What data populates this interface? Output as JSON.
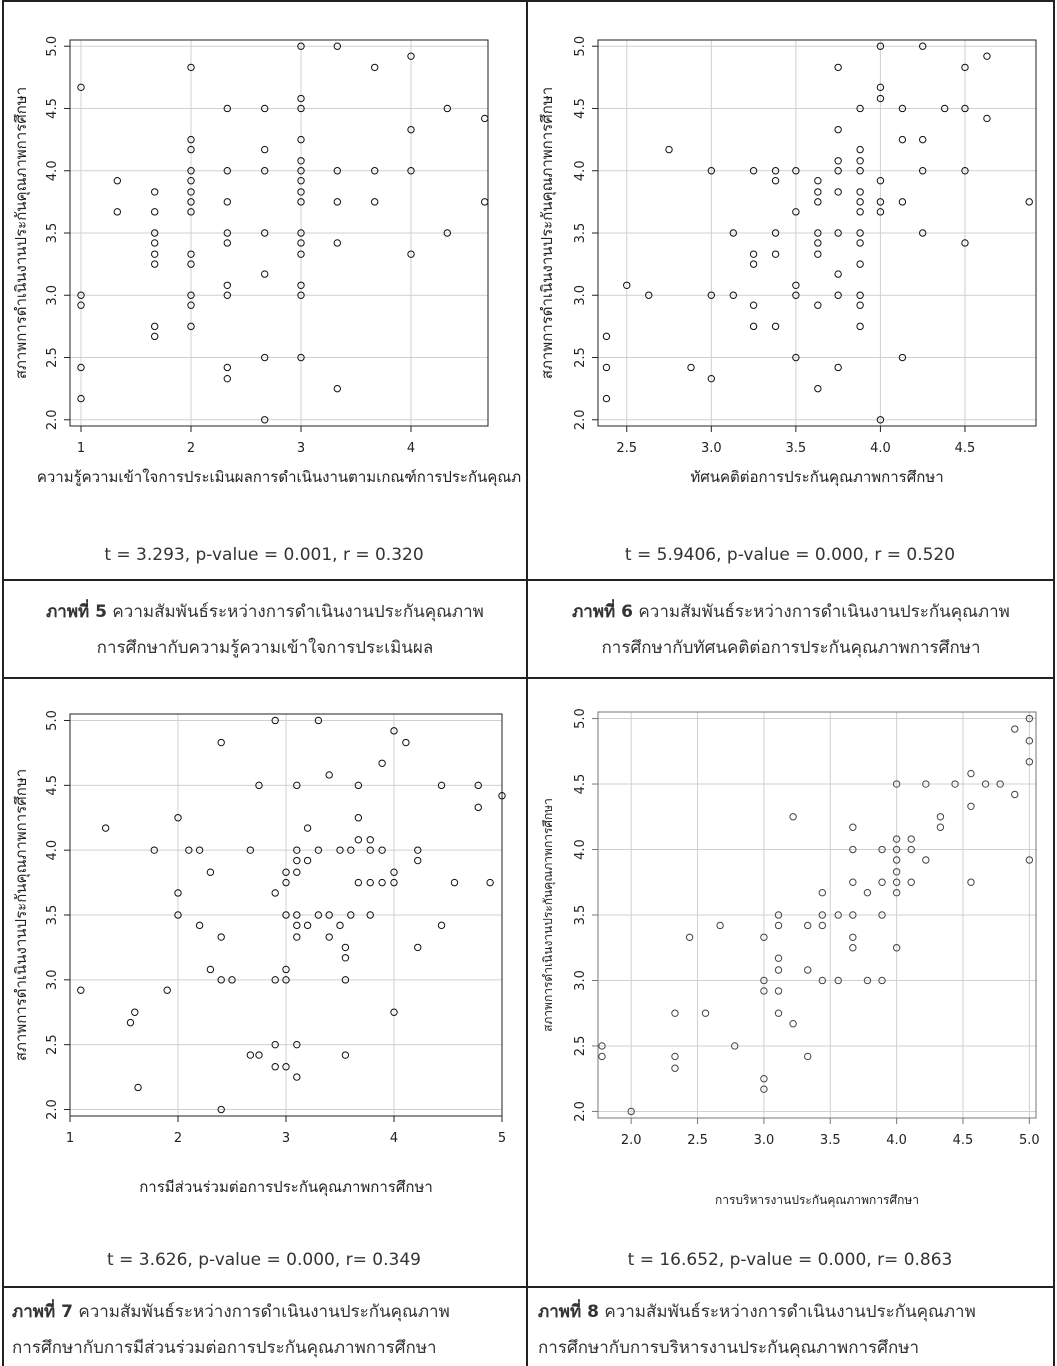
{
  "panels": [
    {
      "stat": "t = 3.293, p-value = 0.001, r = 0.320",
      "caption_label": "ภาพที่ 5",
      "caption_line1": "ความสัมพันธ์ระหว่างการดำเนินงานประกันคุณภาพ",
      "caption_line2": "การศึกษากับความรู้ความเข้าใจการประเมินผล"
    },
    {
      "stat": "t = 5.9406, p-value = 0.000, r = 0.520",
      "caption_label": "ภาพที่ 6",
      "caption_line1": "ความสัมพันธ์ระหว่างการดำเนินงานประกันคุณภาพ",
      "caption_line2": "การศึกษากับทัศนคติต่อการประกันคุณภาพการศึกษา"
    },
    {
      "stat": "t = 3.626, p-value = 0.000, r= 0.349",
      "caption_label": "ภาพที่ 7",
      "caption_line1": "ความสัมพันธ์ระหว่างการดำเนินงานประกันคุณภาพ",
      "caption_line2": "การศึกษากับการมีส่วนร่วมต่อการประกันคุณภาพการศึกษา"
    },
    {
      "stat": "t = 16.652, p-value = 0.000, r= 0.863",
      "caption_label": "ภาพที่ 8",
      "caption_line1": "ความสัมพันธ์ระหว่างการดำเนินงานประกันคุณภาพ",
      "caption_line2": "การศึกษากับการบริหารงานประกันคุณภาพการศึกษา"
    }
  ],
  "chart_data": [
    {
      "type": "scatter",
      "xlabel": "ความรู้ความเข้าใจการประเมินผลการดำเนินงานตามเกณฑ์การประกันคุณภ",
      "ylabel": "สภาพการดำเนินงานประกันคุณภาพการศึกษา",
      "xlim": [
        0.9,
        4.7
      ],
      "ylim": [
        1.95,
        5.05
      ],
      "xticks": [
        1,
        2,
        3,
        4
      ],
      "yticks": [
        2.0,
        2.5,
        3.0,
        3.5,
        4.0,
        4.5,
        5.0
      ],
      "grid": true,
      "points": [
        [
          1.0,
          4.67
        ],
        [
          1.0,
          3.0
        ],
        [
          1.0,
          2.92
        ],
        [
          1.0,
          2.42
        ],
        [
          1.0,
          2.17
        ],
        [
          1.33,
          3.92
        ],
        [
          1.33,
          3.67
        ],
        [
          1.67,
          3.83
        ],
        [
          1.67,
          3.67
        ],
        [
          1.67,
          3.5
        ],
        [
          1.67,
          3.42
        ],
        [
          1.67,
          3.33
        ],
        [
          1.67,
          3.25
        ],
        [
          1.67,
          2.75
        ],
        [
          1.67,
          2.67
        ],
        [
          2.0,
          4.83
        ],
        [
          2.0,
          4.25
        ],
        [
          2.0,
          4.17
        ],
        [
          2.0,
          4.0
        ],
        [
          2.0,
          3.92
        ],
        [
          2.0,
          3.83
        ],
        [
          2.0,
          3.75
        ],
        [
          2.0,
          3.67
        ],
        [
          2.0,
          3.33
        ],
        [
          2.0,
          3.25
        ],
        [
          2.0,
          3.0
        ],
        [
          2.0,
          2.92
        ],
        [
          2.0,
          2.75
        ],
        [
          2.33,
          4.5
        ],
        [
          2.33,
          4.0
        ],
        [
          2.33,
          3.75
        ],
        [
          2.33,
          3.5
        ],
        [
          2.33,
          3.42
        ],
        [
          2.33,
          3.08
        ],
        [
          2.33,
          3.0
        ],
        [
          2.33,
          2.42
        ],
        [
          2.33,
          2.33
        ],
        [
          2.67,
          4.5
        ],
        [
          2.67,
          4.17
        ],
        [
          2.67,
          4.0
        ],
        [
          2.67,
          3.5
        ],
        [
          2.67,
          3.17
        ],
        [
          2.67,
          2.5
        ],
        [
          2.67,
          2.0
        ],
        [
          3.0,
          5.0
        ],
        [
          3.0,
          4.58
        ],
        [
          3.0,
          4.5
        ],
        [
          3.0,
          4.25
        ],
        [
          3.0,
          4.08
        ],
        [
          3.0,
          4.0
        ],
        [
          3.0,
          3.92
        ],
        [
          3.0,
          3.83
        ],
        [
          3.0,
          3.75
        ],
        [
          3.0,
          3.5
        ],
        [
          3.0,
          3.42
        ],
        [
          3.0,
          3.33
        ],
        [
          3.0,
          3.08
        ],
        [
          3.0,
          3.0
        ],
        [
          3.0,
          2.5
        ],
        [
          3.33,
          5.0
        ],
        [
          3.33,
          4.0
        ],
        [
          3.33,
          3.75
        ],
        [
          3.33,
          3.42
        ],
        [
          3.33,
          2.25
        ],
        [
          3.67,
          4.83
        ],
        [
          3.67,
          4.0
        ],
        [
          3.67,
          3.75
        ],
        [
          4.0,
          4.92
        ],
        [
          4.0,
          4.33
        ],
        [
          4.0,
          4.0
        ],
        [
          4.0,
          3.33
        ],
        [
          4.33,
          4.5
        ],
        [
          4.33,
          3.5
        ],
        [
          4.67,
          4.42
        ],
        [
          4.67,
          3.75
        ]
      ]
    },
    {
      "type": "scatter",
      "xlabel": "ทัศนคติต่อการประกันคุณภาพการศึกษา",
      "ylabel": "สภาพการดำเนินงานประกันคุณภาพการศึกษา",
      "xlim": [
        2.33,
        4.92
      ],
      "ylim": [
        1.95,
        5.05
      ],
      "xticks": [
        2.5,
        3.0,
        3.5,
        4.0,
        4.5
      ],
      "yticks": [
        2.0,
        2.5,
        3.0,
        3.5,
        4.0,
        4.5,
        5.0
      ],
      "grid": true,
      "points": [
        [
          2.38,
          2.67
        ],
        [
          2.38,
          2.42
        ],
        [
          2.38,
          2.17
        ],
        [
          2.5,
          3.08
        ],
        [
          2.63,
          3.0
        ],
        [
          2.75,
          4.17
        ],
        [
          2.88,
          2.42
        ],
        [
          3.0,
          4.0
        ],
        [
          3.0,
          3.0
        ],
        [
          3.0,
          2.33
        ],
        [
          3.13,
          3.5
        ],
        [
          3.13,
          3.0
        ],
        [
          3.25,
          4.0
        ],
        [
          3.25,
          3.33
        ],
        [
          3.25,
          3.25
        ],
        [
          3.25,
          2.92
        ],
        [
          3.25,
          2.75
        ],
        [
          3.38,
          4.0
        ],
        [
          3.38,
          3.92
        ],
        [
          3.38,
          3.5
        ],
        [
          3.38,
          3.33
        ],
        [
          3.38,
          2.75
        ],
        [
          3.5,
          4.0
        ],
        [
          3.5,
          3.67
        ],
        [
          3.5,
          3.08
        ],
        [
          3.5,
          3.0
        ],
        [
          3.5,
          2.5
        ],
        [
          3.63,
          3.92
        ],
        [
          3.63,
          3.83
        ],
        [
          3.63,
          3.75
        ],
        [
          3.63,
          3.5
        ],
        [
          3.63,
          3.42
        ],
        [
          3.63,
          3.33
        ],
        [
          3.63,
          2.92
        ],
        [
          3.63,
          2.25
        ],
        [
          3.75,
          4.83
        ],
        [
          3.75,
          4.33
        ],
        [
          3.75,
          4.08
        ],
        [
          3.75,
          4.0
        ],
        [
          3.75,
          3.83
        ],
        [
          3.75,
          3.5
        ],
        [
          3.75,
          3.17
        ],
        [
          3.75,
          3.0
        ],
        [
          3.75,
          2.42
        ],
        [
          3.88,
          4.5
        ],
        [
          3.88,
          4.17
        ],
        [
          3.88,
          4.08
        ],
        [
          3.88,
          4.0
        ],
        [
          3.88,
          3.83
        ],
        [
          3.88,
          3.75
        ],
        [
          3.88,
          3.67
        ],
        [
          3.88,
          3.5
        ],
        [
          3.88,
          3.42
        ],
        [
          3.88,
          3.25
        ],
        [
          3.88,
          3.0
        ],
        [
          3.88,
          2.92
        ],
        [
          3.88,
          2.75
        ],
        [
          4.0,
          5.0
        ],
        [
          4.0,
          4.67
        ],
        [
          4.0,
          4.58
        ],
        [
          4.0,
          3.92
        ],
        [
          4.0,
          3.75
        ],
        [
          4.0,
          3.67
        ],
        [
          4.0,
          2.0
        ],
        [
          4.13,
          4.5
        ],
        [
          4.13,
          4.25
        ],
        [
          4.13,
          3.75
        ],
        [
          4.13,
          2.5
        ],
        [
          4.25,
          5.0
        ],
        [
          4.25,
          4.25
        ],
        [
          4.25,
          4.0
        ],
        [
          4.25,
          3.5
        ],
        [
          4.38,
          4.5
        ],
        [
          4.5,
          4.83
        ],
        [
          4.5,
          4.5
        ],
        [
          4.5,
          4.0
        ],
        [
          4.5,
          3.42
        ],
        [
          4.63,
          4.92
        ],
        [
          4.63,
          4.42
        ],
        [
          4.88,
          3.75
        ]
      ]
    },
    {
      "type": "scatter",
      "xlabel": "การมีส่วนร่วมต่อการประกันคุณภาพการศึกษา",
      "ylabel": "สภาพการดำเนินงานประกันคุณภาพการศึกษา",
      "xlim": [
        1.0,
        5.0
      ],
      "ylim": [
        1.95,
        5.05
      ],
      "xticks": [
        1,
        2,
        3,
        4,
        5
      ],
      "yticks": [
        2.0,
        2.5,
        3.0,
        3.5,
        4.0,
        4.5,
        5.0
      ],
      "grid": true,
      "points": [
        [
          1.1,
          2.92
        ],
        [
          1.33,
          4.17
        ],
        [
          1.56,
          2.67
        ],
        [
          1.6,
          2.75
        ],
        [
          1.63,
          2.17
        ],
        [
          1.78,
          4.0
        ],
        [
          1.9,
          2.92
        ],
        [
          2.0,
          4.25
        ],
        [
          2.0,
          3.67
        ],
        [
          2.0,
          3.5
        ],
        [
          2.1,
          4.0
        ],
        [
          2.2,
          4.0
        ],
        [
          2.2,
          3.42
        ],
        [
          2.3,
          3.83
        ],
        [
          2.3,
          3.08
        ],
        [
          2.4,
          4.83
        ],
        [
          2.4,
          3.33
        ],
        [
          2.4,
          3.0
        ],
        [
          2.4,
          2.0
        ],
        [
          2.5,
          3.0
        ],
        [
          2.67,
          4.0
        ],
        [
          2.67,
          2.42
        ],
        [
          2.75,
          4.5
        ],
        [
          2.75,
          2.42
        ],
        [
          2.9,
          5.0
        ],
        [
          2.9,
          3.67
        ],
        [
          2.9,
          3.0
        ],
        [
          2.9,
          2.5
        ],
        [
          2.9,
          2.33
        ],
        [
          3.0,
          3.83
        ],
        [
          3.0,
          3.75
        ],
        [
          3.0,
          3.5
        ],
        [
          3.0,
          3.08
        ],
        [
          3.0,
          3.0
        ],
        [
          3.0,
          2.33
        ],
        [
          3.1,
          4.5
        ],
        [
          3.1,
          4.0
        ],
        [
          3.1,
          3.92
        ],
        [
          3.1,
          3.83
        ],
        [
          3.1,
          3.5
        ],
        [
          3.1,
          3.42
        ],
        [
          3.1,
          3.33
        ],
        [
          3.1,
          2.5
        ],
        [
          3.1,
          2.25
        ],
        [
          3.2,
          4.17
        ],
        [
          3.2,
          3.92
        ],
        [
          3.2,
          3.42
        ],
        [
          3.3,
          5.0
        ],
        [
          3.3,
          4.0
        ],
        [
          3.3,
          3.5
        ],
        [
          3.4,
          4.58
        ],
        [
          3.4,
          3.5
        ],
        [
          3.4,
          3.33
        ],
        [
          3.5,
          4.0
        ],
        [
          3.5,
          3.42
        ],
        [
          3.55,
          3.25
        ],
        [
          3.55,
          3.17
        ],
        [
          3.55,
          3.0
        ],
        [
          3.55,
          2.42
        ],
        [
          3.6,
          4.0
        ],
        [
          3.6,
          3.5
        ],
        [
          3.67,
          4.5
        ],
        [
          3.67,
          4.25
        ],
        [
          3.67,
          4.08
        ],
        [
          3.67,
          3.75
        ],
        [
          3.78,
          4.08
        ],
        [
          3.78,
          4.0
        ],
        [
          3.78,
          3.75
        ],
        [
          3.78,
          3.5
        ],
        [
          3.89,
          4.67
        ],
        [
          3.89,
          4.0
        ],
        [
          3.89,
          3.75
        ],
        [
          4.0,
          4.92
        ],
        [
          4.0,
          3.83
        ],
        [
          4.0,
          3.75
        ],
        [
          4.0,
          2.75
        ],
        [
          4.11,
          4.83
        ],
        [
          4.22,
          4.0
        ],
        [
          4.22,
          3.92
        ],
        [
          4.22,
          3.25
        ],
        [
          4.44,
          4.5
        ],
        [
          4.44,
          3.42
        ],
        [
          4.56,
          3.75
        ],
        [
          4.78,
          4.5
        ],
        [
          4.78,
          4.33
        ],
        [
          4.89,
          3.75
        ],
        [
          5.0,
          4.42
        ]
      ]
    },
    {
      "type": "scatter",
      "xlabel": "การบริหารงานประกันคุณภาพการศึกษา",
      "ylabel": "สภาพการดำเนินงานประกันคุณภาพการศึกษา",
      "xlim": [
        1.75,
        5.05
      ],
      "ylim": [
        1.95,
        5.05
      ],
      "xticks": [
        2.0,
        2.5,
        3.0,
        3.5,
        4.0,
        4.5,
        5.0
      ],
      "yticks": [
        2.0,
        2.5,
        3.0,
        3.5,
        4.0,
        4.5,
        5.0
      ],
      "grid": true,
      "points": [
        [
          1.78,
          2.5
        ],
        [
          1.78,
          2.42
        ],
        [
          2.0,
          2.0
        ],
        [
          2.33,
          2.75
        ],
        [
          2.33,
          2.42
        ],
        [
          2.33,
          2.33
        ],
        [
          2.44,
          3.33
        ],
        [
          2.56,
          2.75
        ],
        [
          2.67,
          3.42
        ],
        [
          2.78,
          2.5
        ],
        [
          3.0,
          3.33
        ],
        [
          3.0,
          3.0
        ],
        [
          3.0,
          2.92
        ],
        [
          3.0,
          2.25
        ],
        [
          3.0,
          2.17
        ],
        [
          3.11,
          3.5
        ],
        [
          3.11,
          3.42
        ],
        [
          3.11,
          3.17
        ],
        [
          3.11,
          3.08
        ],
        [
          3.11,
          2.92
        ],
        [
          3.11,
          2.75
        ],
        [
          3.22,
          4.25
        ],
        [
          3.22,
          2.67
        ],
        [
          3.33,
          3.42
        ],
        [
          3.33,
          3.08
        ],
        [
          3.33,
          2.42
        ],
        [
          3.44,
          3.67
        ],
        [
          3.44,
          3.5
        ],
        [
          3.44,
          3.42
        ],
        [
          3.44,
          3.0
        ],
        [
          3.56,
          3.5
        ],
        [
          3.56,
          3.0
        ],
        [
          3.67,
          4.17
        ],
        [
          3.67,
          4.0
        ],
        [
          3.67,
          3.75
        ],
        [
          3.67,
          3.5
        ],
        [
          3.67,
          3.33
        ],
        [
          3.67,
          3.25
        ],
        [
          3.78,
          3.67
        ],
        [
          3.78,
          3.0
        ],
        [
          3.89,
          4.0
        ],
        [
          3.89,
          3.75
        ],
        [
          3.89,
          3.5
        ],
        [
          3.89,
          3.0
        ],
        [
          4.0,
          4.5
        ],
        [
          4.0,
          4.08
        ],
        [
          4.0,
          4.0
        ],
        [
          4.0,
          3.92
        ],
        [
          4.0,
          3.83
        ],
        [
          4.0,
          3.75
        ],
        [
          4.0,
          3.67
        ],
        [
          4.0,
          3.25
        ],
        [
          4.11,
          4.08
        ],
        [
          4.11,
          4.0
        ],
        [
          4.11,
          3.75
        ],
        [
          4.22,
          4.5
        ],
        [
          4.22,
          3.92
        ],
        [
          4.33,
          4.25
        ],
        [
          4.33,
          4.17
        ],
        [
          4.44,
          4.5
        ],
        [
          4.56,
          4.58
        ],
        [
          4.56,
          4.33
        ],
        [
          4.56,
          3.75
        ],
        [
          4.67,
          4.5
        ],
        [
          4.78,
          4.5
        ],
        [
          4.89,
          4.92
        ],
        [
          4.89,
          4.42
        ],
        [
          5.0,
          5.0
        ],
        [
          5.0,
          4.83
        ],
        [
          5.0,
          4.67
        ],
        [
          5.0,
          3.92
        ]
      ]
    }
  ]
}
